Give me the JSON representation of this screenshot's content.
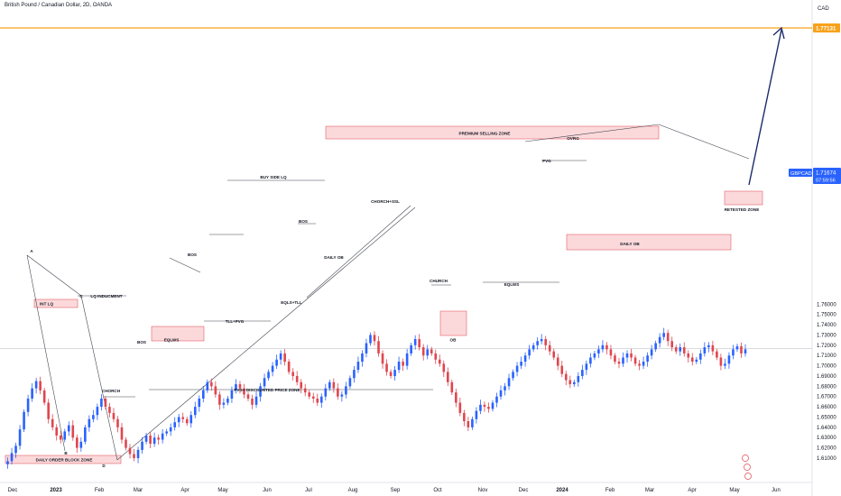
{
  "header": {
    "symbol_title": "British Pound / Canadian Dollar, 2D, OANDA",
    "currency": "CAD"
  },
  "price_badge": {
    "symbol": "GBPCAD",
    "price": "1.71674",
    "countdown": "07:59:56",
    "color": "#2962ff"
  },
  "target_badge": {
    "price": "1.77131",
    "color": "#f7a21b"
  },
  "colors": {
    "bull": "#2962ff",
    "bear": "#e0464e",
    "zone_fill": "#fbd9db",
    "zone_border": "#e0464e",
    "line": "#434651",
    "target_line": "#f7a21b",
    "arrow": "#1c2b6b"
  },
  "chart_data": {
    "type": "candlestick",
    "ylim": [
      1.6035,
      1.7805
    ],
    "y_ticks": [
      "1.61000",
      "1.62000",
      "1.63000",
      "1.64000",
      "1.65000",
      "1.66000",
      "1.67000",
      "1.68000",
      "1.69000",
      "1.70000",
      "1.71000",
      "1.72000",
      "1.73000",
      "1.74000",
      "1.75000",
      "1.76000"
    ],
    "x_ticks": [
      {
        "label": "Dec",
        "strong": false
      },
      {
        "label": "2023",
        "strong": true
      },
      {
        "label": "Feb",
        "strong": false
      },
      {
        "label": "Mar",
        "strong": false
      },
      {
        "label": "Apr",
        "strong": false
      },
      {
        "label": "May",
        "strong": false
      },
      {
        "label": "Jun",
        "strong": false
      },
      {
        "label": "Jul",
        "strong": false
      },
      {
        "label": "Aug",
        "strong": false
      },
      {
        "label": "Sep",
        "strong": false
      },
      {
        "label": "Oct",
        "strong": false
      },
      {
        "label": "Nov",
        "strong": false
      },
      {
        "label": "Dec",
        "strong": false
      },
      {
        "label": "2024",
        "strong": true
      },
      {
        "label": "Feb",
        "strong": false
      },
      {
        "label": "Mar",
        "strong": false
      },
      {
        "label": "Apr",
        "strong": false
      },
      {
        "label": "May",
        "strong": false
      },
      {
        "label": "Jun",
        "strong": false
      }
    ],
    "path": [
      1.604,
      1.607,
      1.615,
      1.622,
      1.638,
      1.655,
      1.668,
      1.678,
      1.685,
      1.676,
      1.664,
      1.648,
      1.64,
      1.632,
      1.628,
      1.636,
      1.642,
      1.63,
      1.62,
      1.626,
      1.64,
      1.648,
      1.652,
      1.66,
      1.668,
      1.66,
      1.654,
      1.648,
      1.64,
      1.628,
      1.62,
      1.614,
      1.61,
      1.618,
      1.626,
      1.632,
      1.624,
      1.63,
      1.628,
      1.634,
      1.636,
      1.64,
      1.645,
      1.65,
      1.648,
      1.644,
      1.652,
      1.66,
      1.668,
      1.676,
      1.684,
      1.68,
      1.672,
      1.662,
      1.664,
      1.668,
      1.676,
      1.682,
      1.678,
      1.672,
      1.668,
      1.662,
      1.67,
      1.68,
      1.688,
      1.694,
      1.7,
      1.706,
      1.712,
      1.704,
      1.694,
      1.69,
      1.684,
      1.678,
      1.674,
      1.67,
      1.668,
      1.664,
      1.67,
      1.678,
      1.684,
      1.678,
      1.67,
      1.672,
      1.68,
      1.688,
      1.696,
      1.704,
      1.712,
      1.722,
      1.73,
      1.724,
      1.712,
      1.702,
      1.694,
      1.69,
      1.696,
      1.704,
      1.7,
      1.712,
      1.72,
      1.726,
      1.718,
      1.71,
      1.716,
      1.712,
      1.706,
      1.702,
      1.694,
      1.684,
      1.674,
      1.664,
      1.654,
      1.646,
      1.64,
      1.648,
      1.656,
      1.662,
      1.66,
      1.658,
      1.664,
      1.67,
      1.676,
      1.68,
      1.688,
      1.694,
      1.7,
      1.704,
      1.71,
      1.716,
      1.72,
      1.724,
      1.726,
      1.72,
      1.714,
      1.708,
      1.7,
      1.692,
      1.686,
      1.682,
      1.684,
      1.69,
      1.696,
      1.702,
      1.708,
      1.712,
      1.716,
      1.72,
      1.716,
      1.71,
      1.704,
      1.702,
      1.708,
      1.712,
      1.708,
      1.702,
      1.7,
      1.704,
      1.71,
      1.716,
      1.722,
      1.728,
      1.732,
      1.724,
      1.718,
      1.714,
      1.718,
      1.712,
      1.708,
      1.704,
      1.706,
      1.712,
      1.718,
      1.72,
      1.714,
      1.708,
      1.7,
      1.702,
      1.71,
      1.716,
      1.719,
      1.712,
      1.716
    ],
    "annotations": {
      "zones": [
        "DAILY ORDER BLOCK ZONE",
        "INT LQ",
        "EQLWS",
        "PREMIUM SELLING ZONE",
        "OB",
        "DAILY OB",
        "RETESTED ZONE"
      ],
      "labels": [
        "LQ INDUCMENT",
        "BOS",
        "CHORCH",
        "BOS",
        "TLL+FVG",
        "BUY SIDE LQ",
        "BOS",
        "EQLS+TLL",
        "DAILY OB",
        "CHORCH+SSL",
        "CHURCH",
        "EQLWS",
        "OVRG",
        "FVG",
        "FVG+ DISCOUNTED PRICE ZONE"
      ],
      "points": [
        "A",
        "B",
        "C",
        "D"
      ]
    }
  }
}
